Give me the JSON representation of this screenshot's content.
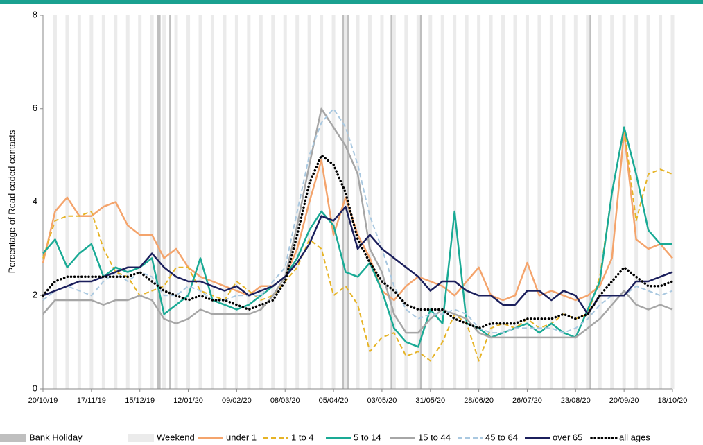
{
  "chart_data": {
    "type": "line",
    "y_label": "Percentage of Read coded contacts",
    "x": [
      "20/10/19",
      "27/10/19",
      "03/11/19",
      "10/11/19",
      "17/11/19",
      "24/11/19",
      "01/12/19",
      "08/12/19",
      "15/12/19",
      "22/12/19",
      "29/12/19",
      "05/01/20",
      "12/01/20",
      "19/01/20",
      "26/01/20",
      "02/02/20",
      "09/02/20",
      "16/02/20",
      "23/02/20",
      "01/03/20",
      "08/03/20",
      "15/03/20",
      "22/03/20",
      "29/03/20",
      "05/04/20",
      "12/04/20",
      "19/04/20",
      "26/04/20",
      "03/05/20",
      "10/05/20",
      "17/05/20",
      "24/05/20",
      "31/05/20",
      "07/06/20",
      "14/06/20",
      "21/06/20",
      "28/06/20",
      "05/07/20",
      "12/07/20",
      "19/07/20",
      "26/07/20",
      "02/08/20",
      "09/08/20",
      "16/08/20",
      "23/08/20",
      "30/08/20",
      "06/09/20",
      "13/09/20",
      "20/09/20",
      "27/09/20",
      "04/10/20",
      "11/10/20",
      "18/10/20"
    ],
    "xlim": [
      "20/10/19",
      "18/10/20"
    ],
    "xticks": [
      "20/10/19",
      "17/11/19",
      "15/12/19",
      "12/01/20",
      "09/02/20",
      "08/03/20",
      "05/04/20",
      "03/05/20",
      "31/05/20",
      "28/06/20",
      "26/07/20",
      "23/08/20",
      "20/09/20",
      "18/10/20"
    ],
    "ylim": [
      0,
      8
    ],
    "yticks": [
      0,
      2,
      4,
      6,
      8
    ],
    "bank_holiday": {
      "name": "Bank Holiday",
      "color": "#bfbfbf",
      "dates": [
        "25/12/19",
        "26/12/19",
        "01/01/20",
        "10/04/20",
        "13/04/20",
        "08/05/20",
        "25/05/20",
        "31/08/20"
      ]
    },
    "weekend": {
      "name": "Weekend",
      "color": "#ebebeb"
    },
    "series": [
      {
        "name": "under 1",
        "color": "#f4a46c",
        "dash": "solid",
        "values": [
          2.7,
          3.8,
          4.1,
          3.7,
          3.7,
          3.9,
          4.0,
          3.5,
          3.3,
          3.3,
          2.8,
          3.0,
          2.6,
          2.4,
          2.3,
          2.2,
          2.1,
          2.0,
          2.2,
          2.2,
          2.4,
          3.0,
          4.0,
          4.9,
          3.3,
          4.1,
          3.3,
          2.8,
          2.1,
          1.9,
          2.2,
          2.4,
          2.3,
          2.2,
          2.0,
          2.3,
          2.6,
          2.0,
          1.9,
          2.0,
          2.7,
          2.0,
          2.1,
          2.0,
          1.9,
          2.0,
          2.2,
          2.8,
          5.5,
          3.2,
          3.0,
          3.1,
          2.8
        ]
      },
      {
        "name": "1 to 4",
        "color": "#e6b325",
        "dash": "dashed",
        "values": [
          2.8,
          3.6,
          3.7,
          3.7,
          3.8,
          3.0,
          2.5,
          2.4,
          2.0,
          2.1,
          2.2,
          2.6,
          2.6,
          2.1,
          2.0,
          1.9,
          2.3,
          2.1,
          1.9,
          2.0,
          2.3,
          2.6,
          3.2,
          3.0,
          2.0,
          2.2,
          1.8,
          0.8,
          1.1,
          1.2,
          0.7,
          0.8,
          0.6,
          1.0,
          1.6,
          1.4,
          0.6,
          1.3,
          1.4,
          1.3,
          1.5,
          1.3,
          1.4,
          1.6,
          1.5,
          1.6,
          2.4,
          4.2,
          5.6,
          3.6,
          4.6,
          4.7,
          4.6
        ]
      },
      {
        "name": "5 to 14",
        "color": "#1aaa95",
        "dash": "solid",
        "values": [
          2.9,
          3.2,
          2.6,
          2.9,
          3.1,
          2.4,
          2.6,
          2.5,
          2.6,
          2.8,
          1.6,
          1.8,
          2.0,
          2.8,
          1.9,
          1.8,
          1.7,
          1.8,
          2.0,
          2.2,
          2.4,
          2.8,
          3.4,
          3.8,
          3.5,
          2.5,
          2.4,
          2.7,
          2.1,
          1.3,
          1.0,
          0.9,
          1.7,
          1.4,
          3.8,
          1.4,
          1.3,
          1.1,
          1.2,
          1.3,
          1.4,
          1.2,
          1.4,
          1.2,
          1.1,
          1.7,
          2.3,
          4.2,
          5.6,
          4.6,
          3.4,
          3.1,
          3.1
        ]
      },
      {
        "name": "15 to 44",
        "color": "#a6a6a6",
        "dash": "solid",
        "values": [
          1.6,
          1.9,
          1.9,
          1.9,
          1.9,
          1.8,
          1.9,
          1.9,
          2.0,
          1.9,
          1.5,
          1.4,
          1.5,
          1.7,
          1.6,
          1.6,
          1.6,
          1.6,
          1.7,
          2.0,
          2.4,
          3.5,
          4.8,
          6.0,
          5.6,
          5.2,
          4.6,
          3.0,
          2.5,
          1.6,
          1.2,
          1.2,
          1.5,
          1.7,
          1.6,
          1.5,
          1.2,
          1.1,
          1.1,
          1.1,
          1.1,
          1.1,
          1.1,
          1.1,
          1.1,
          1.3,
          1.5,
          1.8,
          2.1,
          1.8,
          1.7,
          1.8,
          1.7
        ]
      },
      {
        "name": "45 to 64",
        "color": "#a9c8e0",
        "dash": "dashed",
        "values": [
          1.9,
          2.1,
          2.2,
          2.1,
          2.0,
          2.3,
          2.5,
          2.3,
          2.5,
          2.4,
          2.0,
          2.0,
          2.2,
          2.1,
          1.9,
          1.9,
          2.0,
          2.0,
          2.0,
          2.3,
          2.6,
          3.8,
          5.0,
          5.7,
          6.0,
          5.6,
          4.8,
          3.7,
          3.0,
          2.2,
          1.7,
          1.5,
          1.6,
          1.6,
          1.7,
          1.6,
          1.3,
          1.2,
          1.2,
          1.3,
          1.3,
          1.3,
          1.3,
          1.2,
          1.3,
          1.5,
          1.8,
          2.0,
          2.0,
          2.2,
          2.1,
          2.0,
          2.1
        ]
      },
      {
        "name": "over 65",
        "color": "#1b1f5c",
        "dash": "solid",
        "values": [
          2.0,
          2.1,
          2.2,
          2.3,
          2.3,
          2.4,
          2.5,
          2.6,
          2.6,
          2.9,
          2.6,
          2.4,
          2.3,
          2.3,
          2.2,
          2.1,
          2.2,
          2.0,
          2.1,
          2.2,
          2.4,
          2.7,
          3.1,
          3.7,
          3.6,
          3.9,
          3.0,
          3.3,
          3.0,
          2.8,
          2.6,
          2.4,
          2.1,
          2.3,
          2.3,
          2.1,
          2.0,
          2.0,
          1.8,
          1.8,
          2.1,
          2.1,
          1.9,
          2.1,
          2.0,
          1.6,
          2.0,
          2.0,
          2.0,
          2.3,
          2.3,
          2.4,
          2.5
        ]
      },
      {
        "name": "all ages",
        "color": "#000000",
        "dash": "dotted",
        "values": [
          2.0,
          2.3,
          2.4,
          2.4,
          2.4,
          2.4,
          2.4,
          2.4,
          2.5,
          2.3,
          2.1,
          2.0,
          1.9,
          2.0,
          1.9,
          1.9,
          1.8,
          1.7,
          1.8,
          1.9,
          2.3,
          3.3,
          4.4,
          5.0,
          4.8,
          4.2,
          3.2,
          2.7,
          2.3,
          2.1,
          1.8,
          1.7,
          1.7,
          1.7,
          1.5,
          1.4,
          1.3,
          1.4,
          1.4,
          1.4,
          1.5,
          1.5,
          1.5,
          1.6,
          1.5,
          1.6,
          2.0,
          2.3,
          2.6,
          2.4,
          2.2,
          2.2,
          2.3
        ]
      }
    ]
  }
}
